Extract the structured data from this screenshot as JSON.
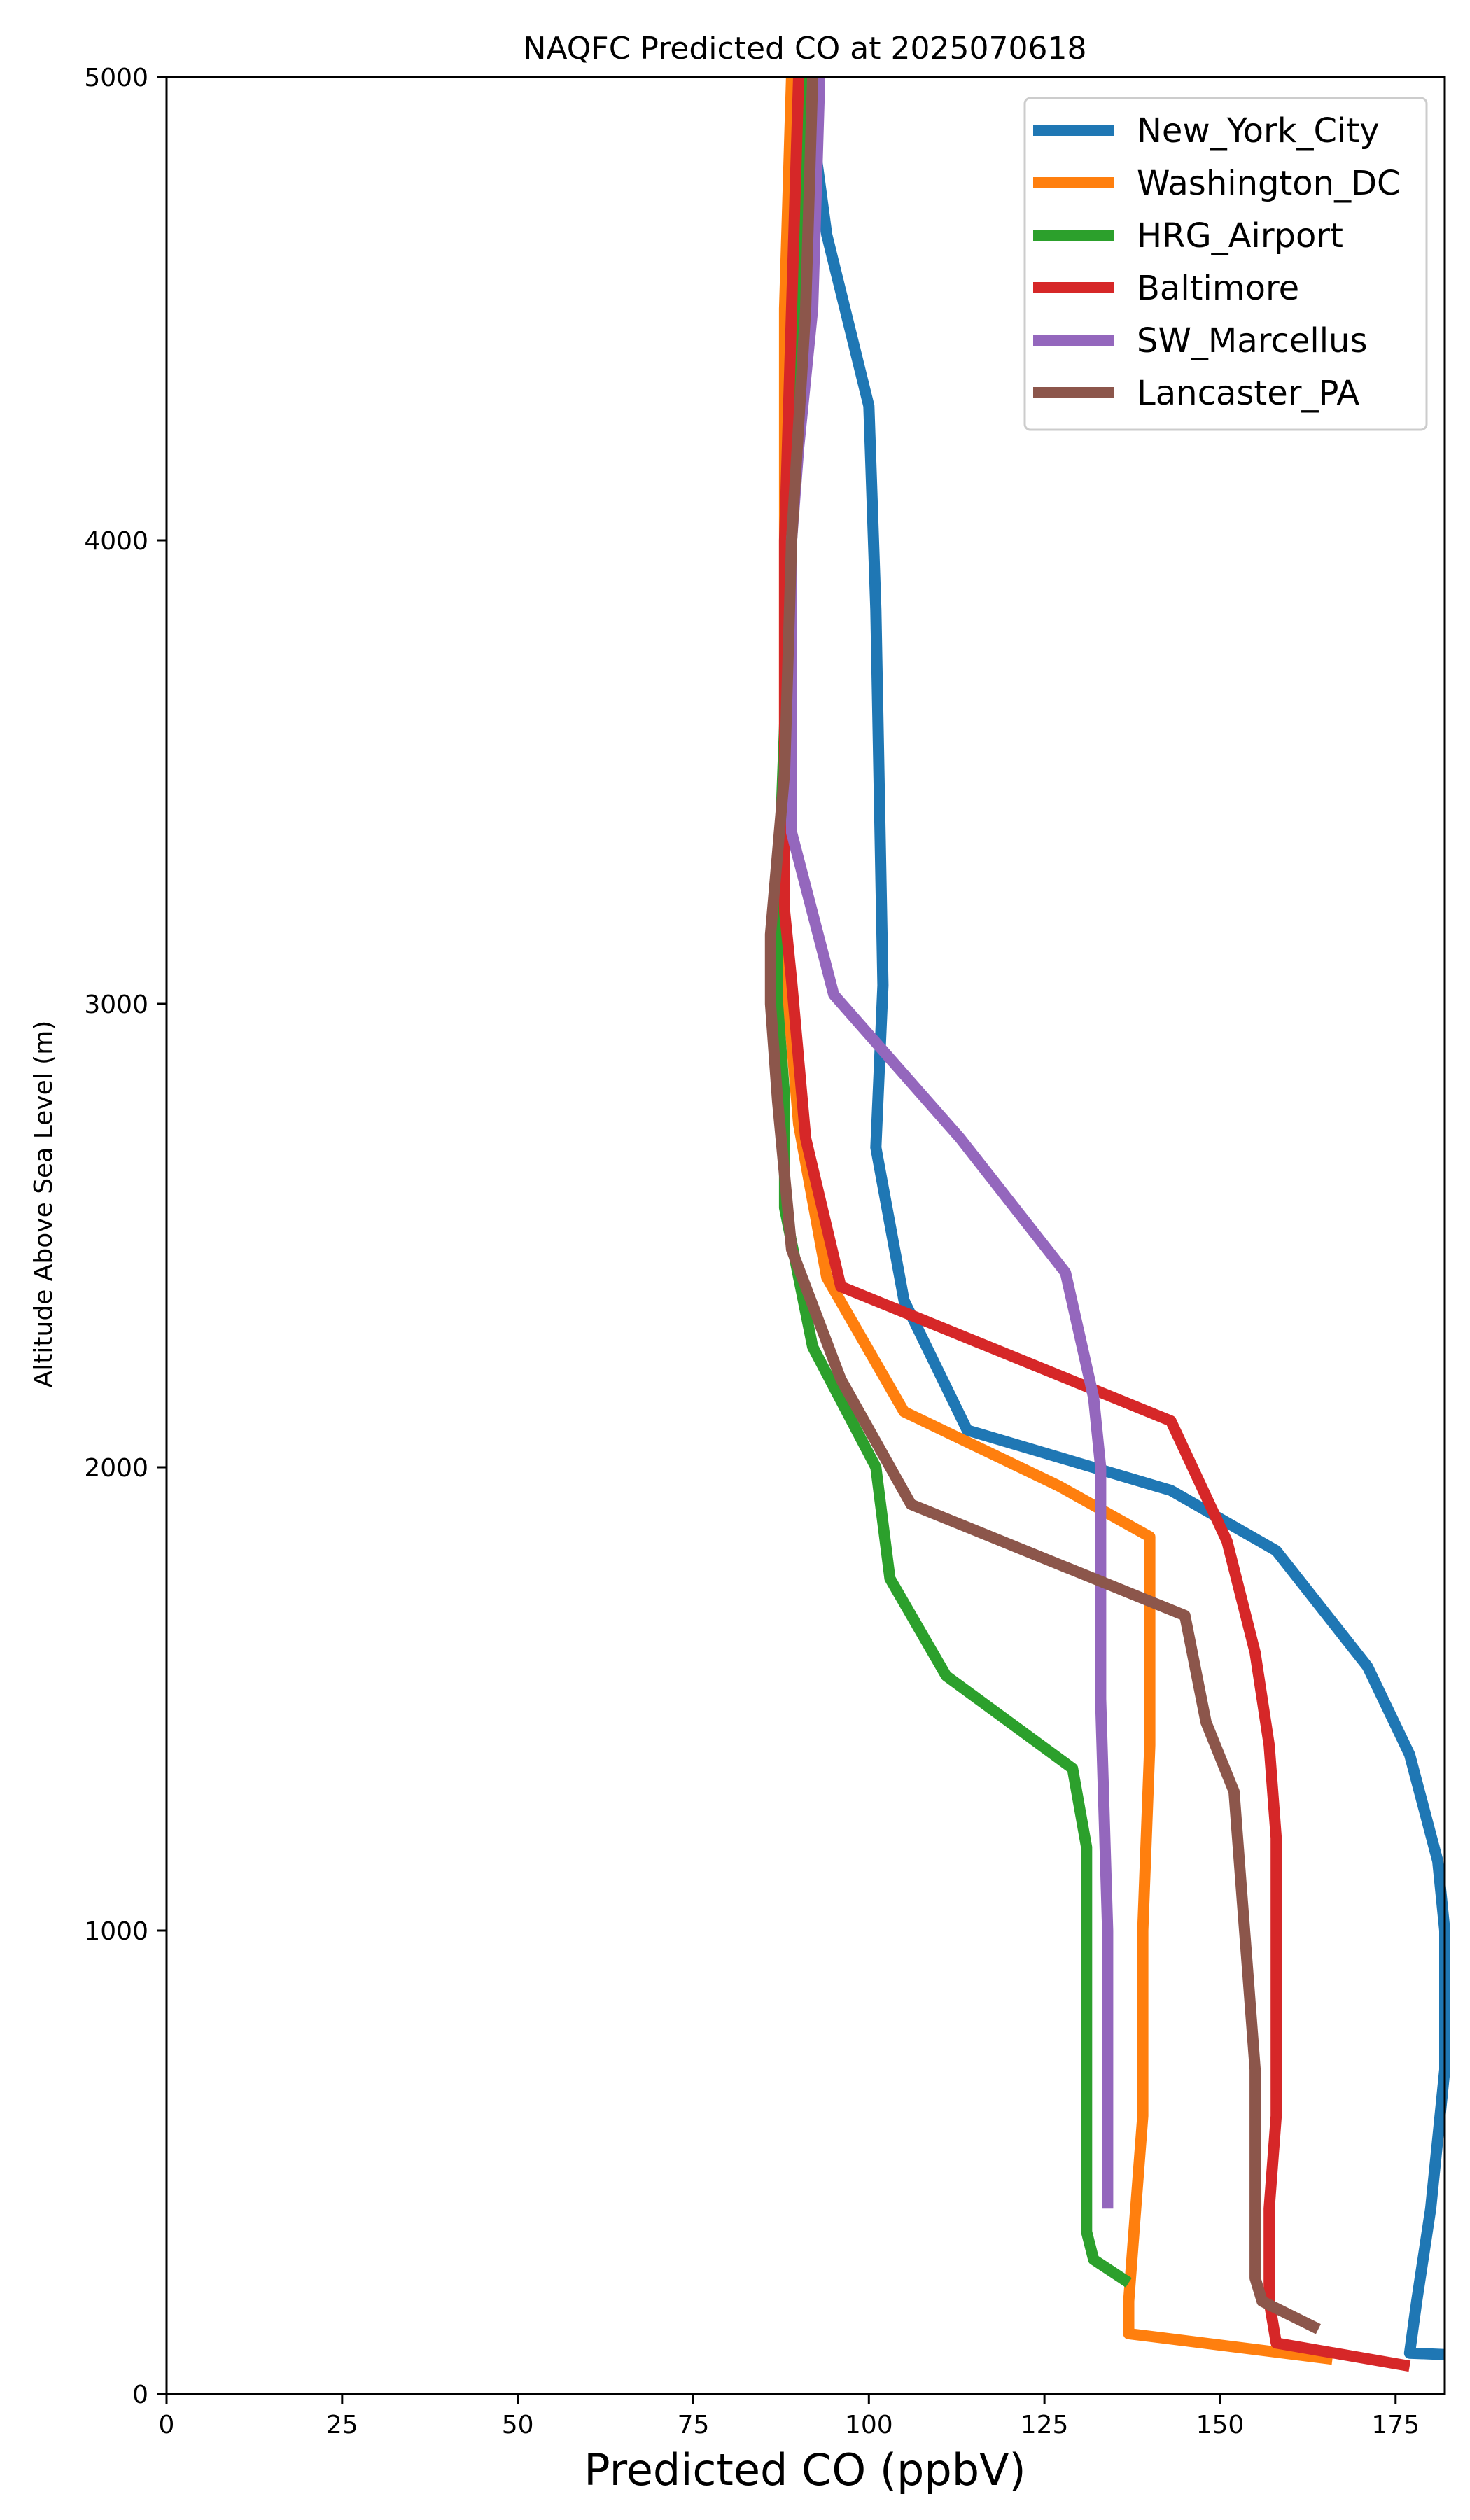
{
  "chart_data": {
    "type": "line",
    "title": "NAQFC Predicted CO at 2025070618",
    "xlabel": "Predicted CO (ppbV)",
    "ylabel": "Altitude Above Sea Level (m)",
    "xlim": [
      0,
      182
    ],
    "ylim": [
      0,
      5000
    ],
    "xticks": [
      0,
      25,
      50,
      75,
      100,
      125,
      150,
      175
    ],
    "yticks": [
      0,
      1000,
      2000,
      3000,
      4000,
      5000
    ],
    "grid": false,
    "legend_position": "top-right",
    "series": [
      {
        "name": "New_York_City",
        "color": "#1f77b4",
        "points": [
          [
            182,
            85
          ],
          [
            177,
            88
          ],
          [
            178,
            200
          ],
          [
            180,
            400
          ],
          [
            182,
            700
          ],
          [
            182,
            1000
          ],
          [
            181,
            1150
          ],
          [
            177,
            1380
          ],
          [
            171,
            1570
          ],
          [
            158,
            1820
          ],
          [
            143,
            1950
          ],
          [
            114,
            2080
          ],
          [
            105,
            2360
          ],
          [
            101,
            2690
          ],
          [
            102,
            3040
          ],
          [
            101,
            3850
          ],
          [
            100,
            4290
          ],
          [
            94,
            4660
          ],
          [
            91,
            5000
          ]
        ]
      },
      {
        "name": "Washington_DC",
        "color": "#ff7f0e",
        "points": [
          [
            166,
            75
          ],
          [
            137,
            130
          ],
          [
            137,
            200
          ],
          [
            138,
            400
          ],
          [
            139,
            600
          ],
          [
            139,
            1000
          ],
          [
            140,
            1400
          ],
          [
            140,
            1850
          ],
          [
            127,
            1960
          ],
          [
            105,
            2120
          ],
          [
            94,
            2410
          ],
          [
            90,
            2740
          ],
          [
            88,
            3100
          ],
          [
            88,
            3500
          ],
          [
            88,
            4000
          ],
          [
            88,
            4500
          ],
          [
            89,
            5000
          ]
        ]
      },
      {
        "name": "HRG_Airport",
        "color": "#2ca02c",
        "points": [
          [
            137,
            240
          ],
          [
            132,
            290
          ],
          [
            131,
            350
          ],
          [
            131,
            500
          ],
          [
            131,
            800
          ],
          [
            131,
            1000
          ],
          [
            131,
            1180
          ],
          [
            129,
            1350
          ],
          [
            111,
            1550
          ],
          [
            103,
            1760
          ],
          [
            101,
            2000
          ],
          [
            92,
            2260
          ],
          [
            88,
            2560
          ],
          [
            88,
            2800
          ],
          [
            87,
            3000
          ],
          [
            87,
            3200
          ],
          [
            88,
            3600
          ],
          [
            89,
            4000
          ],
          [
            90,
            4500
          ],
          [
            91,
            5000
          ]
        ]
      },
      {
        "name": "Baltimore",
        "color": "#d62728",
        "points": [
          [
            177,
            60
          ],
          [
            158,
            110
          ],
          [
            157,
            200
          ],
          [
            157,
            400
          ],
          [
            158,
            600
          ],
          [
            158,
            800
          ],
          [
            158,
            1000
          ],
          [
            158,
            1200
          ],
          [
            157,
            1400
          ],
          [
            155,
            1600
          ],
          [
            151,
            1840
          ],
          [
            143,
            2100
          ],
          [
            96,
            2390
          ],
          [
            91,
            2710
          ],
          [
            89,
            3050
          ],
          [
            88,
            3200
          ],
          [
            88,
            3500
          ],
          [
            88,
            4000
          ],
          [
            89,
            4500
          ],
          [
            90,
            5000
          ]
        ]
      },
      {
        "name": "SW_Marcellus",
        "color": "#9467bd",
        "points": [
          [
            134,
            400
          ],
          [
            134,
            1000
          ],
          [
            133,
            1500
          ],
          [
            133,
            1800
          ],
          [
            133,
            2000
          ],
          [
            132,
            2150
          ],
          [
            128,
            2420
          ],
          [
            113,
            2710
          ],
          [
            95,
            3020
          ],
          [
            89,
            3370
          ],
          [
            89,
            3500
          ],
          [
            89,
            4000
          ],
          [
            90,
            4200
          ],
          [
            92,
            4500
          ],
          [
            93,
            5000
          ]
        ]
      },
      {
        "name": "Lancaster_PA",
        "color": "#8c564b",
        "points": [
          [
            164,
            140
          ],
          [
            156,
            200
          ],
          [
            155,
            250
          ],
          [
            155,
            500
          ],
          [
            155,
            700
          ],
          [
            154,
            900
          ],
          [
            153,
            1100
          ],
          [
            152,
            1300
          ],
          [
            148,
            1450
          ],
          [
            145,
            1680
          ],
          [
            106,
            1920
          ],
          [
            96,
            2190
          ],
          [
            89,
            2470
          ],
          [
            87,
            2790
          ],
          [
            86,
            3000
          ],
          [
            86,
            3150
          ],
          [
            88,
            3500
          ],
          [
            89,
            4000
          ],
          [
            91,
            4500
          ],
          [
            92,
            5000
          ]
        ]
      }
    ]
  }
}
